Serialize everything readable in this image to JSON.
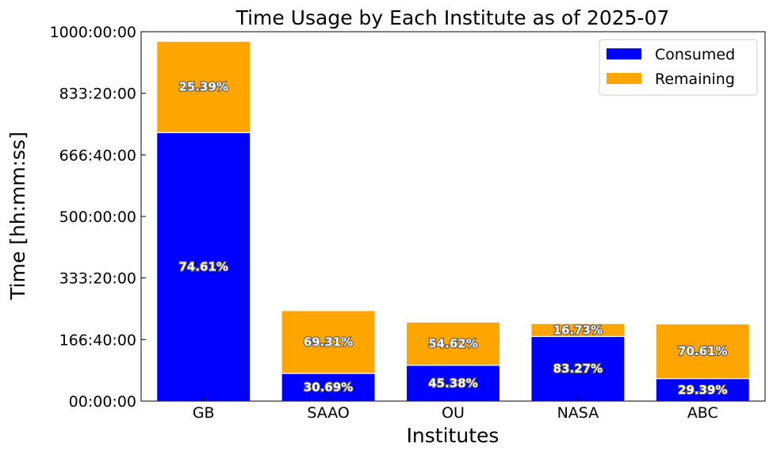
{
  "chart_data": {
    "type": "bar",
    "stacked": true,
    "title": "Time Usage by Each Institute as of 2025-07",
    "xlabel": "Institutes",
    "ylabel": "Time [hh:mm:ss]",
    "categories": [
      "GB",
      "SAAO",
      "OU",
      "NASA",
      "ABC"
    ],
    "ylim_hours": [
      0,
      1000
    ],
    "y_ticks_hours": [
      0,
      166.6667,
      333.3333,
      500,
      666.6667,
      833.3333,
      1000
    ],
    "y_tick_labels": [
      "00:00:00",
      "166:40:00",
      "333:20:00",
      "500:00:00",
      "666:40:00",
      "833:20:00",
      "1000:00:00"
    ],
    "series": [
      {
        "name": "Consumed",
        "color": "#0000ff",
        "values_hours": [
          727,
          75,
          97,
          175,
          61
        ],
        "labels": [
          "74.61%",
          "30.69%",
          "45.38%",
          "83.27%",
          "29.39%"
        ]
      },
      {
        "name": "Remaining",
        "color": "#ffa500",
        "values_hours": [
          247,
          170,
          117,
          35,
          148
        ],
        "labels": [
          "25.39%",
          "69.31%",
          "54.62%",
          "16.73%",
          "70.61%"
        ]
      }
    ],
    "legend_position": "top-right",
    "grid": false
  }
}
